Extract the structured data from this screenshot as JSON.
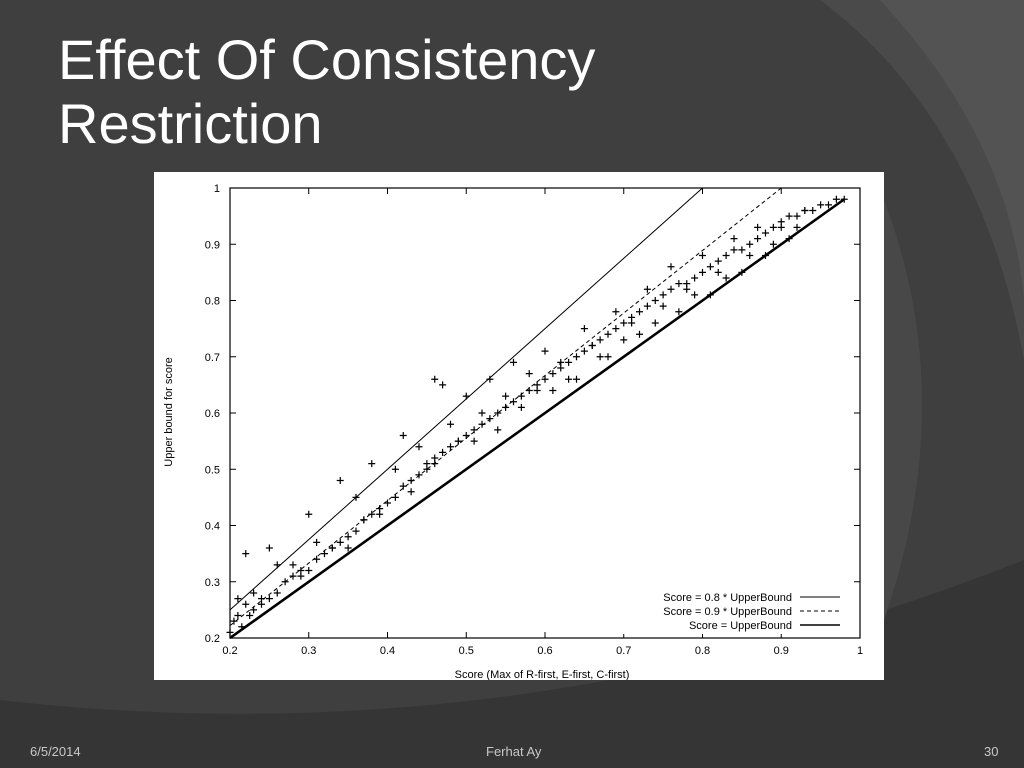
{
  "slide": {
    "title_line1": "Effect Of Consistency",
    "title_line2": "Restriction",
    "footer_date": "6/5/2014",
    "footer_author": "Ferhat Ay",
    "footer_page": "30"
  },
  "chart_data": {
    "type": "scatter",
    "xlabel": "Score (Max of R-first, E-first, C-first)",
    "ylabel": "Upper bound for score",
    "xlim": [
      0.2,
      1
    ],
    "ylim": [
      0.2,
      1
    ],
    "xticks": [
      "0.2",
      "0.3",
      "0.4",
      "0.5",
      "0.6",
      "0.7",
      "0.8",
      "0.9",
      "1"
    ],
    "yticks": [
      "0.2",
      "0.3",
      "0.4",
      "0.5",
      "0.6",
      "0.7",
      "0.8",
      "0.9",
      "1"
    ],
    "grid": false,
    "legend_position": "bottom-right",
    "series": [
      {
        "name": "Score = 0.8 * UpperBound",
        "style": "solid-thin",
        "x": [
          0.2,
          0.8
        ],
        "y": [
          0.25,
          1.0
        ]
      },
      {
        "name": "Score = 0.9 * UpperBound",
        "style": "dashed",
        "x": [
          0.2,
          0.9
        ],
        "y": [
          0.222,
          1.0
        ]
      },
      {
        "name": "Score = UpperBound",
        "style": "solid-thick",
        "x": [
          0.2,
          0.98
        ],
        "y": [
          0.2,
          0.98
        ]
      }
    ],
    "points": {
      "marker": "+",
      "x": [
        0.2,
        0.205,
        0.21,
        0.215,
        0.22,
        0.225,
        0.23,
        0.24,
        0.25,
        0.26,
        0.27,
        0.28,
        0.29,
        0.3,
        0.31,
        0.32,
        0.33,
        0.34,
        0.35,
        0.36,
        0.37,
        0.38,
        0.39,
        0.4,
        0.41,
        0.42,
        0.43,
        0.44,
        0.45,
        0.46,
        0.47,
        0.48,
        0.49,
        0.5,
        0.51,
        0.52,
        0.53,
        0.54,
        0.55,
        0.56,
        0.57,
        0.58,
        0.59,
        0.6,
        0.61,
        0.62,
        0.63,
        0.64,
        0.65,
        0.66,
        0.67,
        0.68,
        0.69,
        0.7,
        0.71,
        0.72,
        0.73,
        0.74,
        0.75,
        0.76,
        0.77,
        0.78,
        0.79,
        0.8,
        0.81,
        0.82,
        0.83,
        0.84,
        0.85,
        0.86,
        0.87,
        0.88,
        0.89,
        0.9,
        0.91,
        0.92,
        0.93,
        0.94,
        0.95,
        0.96,
        0.97,
        0.98,
        0.22,
        0.25,
        0.3,
        0.34,
        0.38,
        0.42,
        0.46,
        0.47,
        0.5,
        0.53,
        0.56,
        0.6,
        0.65,
        0.69,
        0.73,
        0.76,
        0.8,
        0.84,
        0.87,
        0.9,
        0.93,
        0.21,
        0.26,
        0.31,
        0.36,
        0.41,
        0.44,
        0.48,
        0.52,
        0.55,
        0.58,
        0.62,
        0.66,
        0.71,
        0.75,
        0.78,
        0.82,
        0.86,
        0.89,
        0.92,
        0.23,
        0.28,
        0.33,
        0.37,
        0.43,
        0.45,
        0.49,
        0.54,
        0.57,
        0.61,
        0.64,
        0.68,
        0.72,
        0.77,
        0.81,
        0.85,
        0.88,
        0.24,
        0.29,
        0.35,
        0.39,
        0.46,
        0.51,
        0.59,
        0.63,
        0.67,
        0.7,
        0.74,
        0.79,
        0.83,
        0.91
      ],
      "y": [
        0.21,
        0.23,
        0.24,
        0.22,
        0.26,
        0.24,
        0.25,
        0.26,
        0.27,
        0.28,
        0.3,
        0.31,
        0.32,
        0.32,
        0.34,
        0.35,
        0.36,
        0.37,
        0.38,
        0.39,
        0.41,
        0.42,
        0.43,
        0.44,
        0.45,
        0.47,
        0.48,
        0.49,
        0.51,
        0.52,
        0.53,
        0.54,
        0.55,
        0.56,
        0.57,
        0.58,
        0.59,
        0.6,
        0.61,
        0.62,
        0.63,
        0.64,
        0.65,
        0.66,
        0.67,
        0.68,
        0.69,
        0.7,
        0.71,
        0.72,
        0.73,
        0.74,
        0.75,
        0.76,
        0.77,
        0.78,
        0.79,
        0.8,
        0.81,
        0.82,
        0.83,
        0.83,
        0.84,
        0.85,
        0.86,
        0.87,
        0.88,
        0.89,
        0.89,
        0.9,
        0.91,
        0.92,
        0.93,
        0.94,
        0.95,
        0.95,
        0.96,
        0.96,
        0.97,
        0.97,
        0.98,
        0.98,
        0.35,
        0.36,
        0.42,
        0.48,
        0.51,
        0.56,
        0.66,
        0.65,
        0.63,
        0.66,
        0.69,
        0.71,
        0.75,
        0.78,
        0.82,
        0.86,
        0.88,
        0.91,
        0.93,
        0.93,
        0.96,
        0.27,
        0.33,
        0.37,
        0.45,
        0.5,
        0.54,
        0.58,
        0.6,
        0.63,
        0.67,
        0.69,
        0.72,
        0.76,
        0.79,
        0.82,
        0.85,
        0.88,
        0.9,
        0.93,
        0.28,
        0.33,
        0.36,
        0.41,
        0.46,
        0.5,
        0.55,
        0.57,
        0.61,
        0.64,
        0.66,
        0.7,
        0.74,
        0.78,
        0.81,
        0.85,
        0.88,
        0.27,
        0.31,
        0.36,
        0.42,
        0.51,
        0.55,
        0.64,
        0.66,
        0.7,
        0.73,
        0.76,
        0.81,
        0.84,
        0.91
      ]
    }
  }
}
